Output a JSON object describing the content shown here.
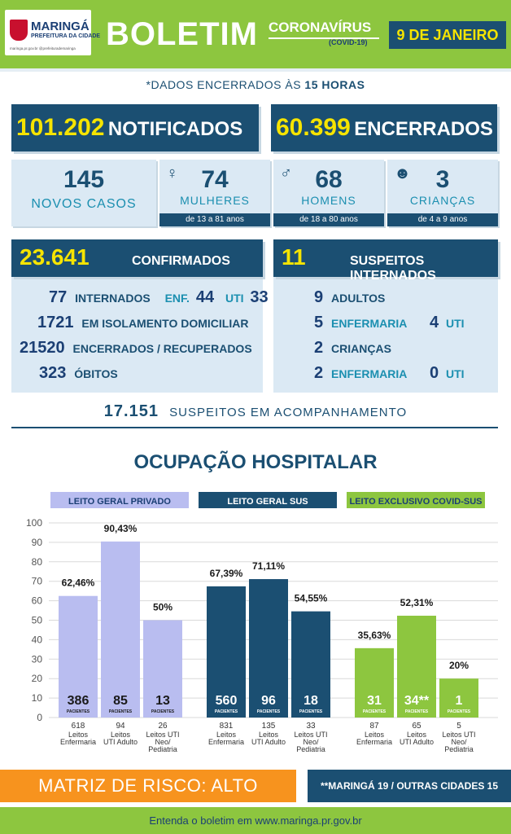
{
  "header": {
    "logo_name": "MARINGÁ",
    "logo_sub": "PREFEITURA DA CIDADE",
    "logo_web": "maringa.pr.gov.br  @prefeiturademaringa",
    "title": "BOLETIM",
    "covid": "CORONAVÍRUS",
    "covid_sub": "(COVID-19)",
    "date": "9 DE JANEIRO"
  },
  "note": {
    "prefix": "*DADOS ENCERRADOS ÀS ",
    "hour": "15 HORAS"
  },
  "notificados": {
    "num": "101.202",
    "label": "NOTIFICADOS"
  },
  "encerrados": {
    "num": "60.399",
    "label": "ENCERRADOS"
  },
  "novos": {
    "num": "145",
    "label": "NOVOS CASOS"
  },
  "mulheres": {
    "num": "74",
    "label": "MULHERES",
    "range": "de 13 a 81 anos"
  },
  "homens": {
    "num": "68",
    "label": "HOMENS",
    "range": "de 18 a 80 anos"
  },
  "criancas": {
    "num": "3",
    "label": "CRIANÇAS",
    "range": "de 4 a 9 anos"
  },
  "confirmados": {
    "num": "23.641",
    "label": "CONFIRMADOS",
    "internados": {
      "num": "77",
      "label": "INTERNADOS",
      "enf_label": "ENF.",
      "enf": "44",
      "uti_label": "UTI",
      "uti": "33"
    },
    "isolamento": {
      "num": "1721",
      "label": "EM ISOLAMENTO DOMICILIAR"
    },
    "recuperados": {
      "num": "21520",
      "label": "ENCERRADOS / RECUPERADOS"
    },
    "obitos": {
      "num": "323",
      "label": "ÓBITOS"
    }
  },
  "suspeitos": {
    "num": "11",
    "label": "SUSPEITOS INTERNADOS",
    "adultos": {
      "num": "9",
      "label": "ADULTOS"
    },
    "adult_enf": {
      "num": "5",
      "label": "ENFERMARIA",
      "uti": "4",
      "uti_label": "UTI"
    },
    "criancas": {
      "num": "2",
      "label": "CRIANÇAS"
    },
    "cri_enf": {
      "num": "2",
      "label": "ENFERMARIA",
      "uti": "0",
      "uti_label": "UTI"
    }
  },
  "acompanhamento": {
    "num": "17.151",
    "label": "SUSPEITOS EM ACOMPANHAMENTO"
  },
  "ocupacao_title": "OCUPAÇÃO HOSPITALAR",
  "chart_data": {
    "type": "bar",
    "ylim": [
      0,
      100
    ],
    "yticks": [
      0,
      10,
      20,
      30,
      40,
      50,
      60,
      70,
      80,
      90,
      100
    ],
    "patients_label": "PACIENTES",
    "groups": [
      {
        "title": "LEITO GERAL PRIVADO",
        "header_color": "#b9bdf0",
        "bar_color": "#b9bdf0",
        "bars": [
          {
            "value": 62.46,
            "label": "62,46%",
            "patients": "386",
            "beds": "618",
            "cat": [
              "Leitos",
              "Enfermaria"
            ]
          },
          {
            "value": 90.43,
            "label": "90,43%",
            "patients": "85",
            "beds": "94",
            "cat": [
              "Leitos",
              "UTI Adulto"
            ]
          },
          {
            "value": 50,
            "label": "50%",
            "patients": "13",
            "beds": "26",
            "cat": [
              "Leitos UTI",
              "Neo/",
              "Pediatria"
            ]
          }
        ]
      },
      {
        "title": "LEITO GERAL SUS",
        "header_color": "#1b4f72",
        "bar_color": "#1b4f72",
        "bars": [
          {
            "value": 67.39,
            "label": "67,39%",
            "patients": "560",
            "beds": "831",
            "cat": [
              "Leitos",
              "Enfermaria"
            ]
          },
          {
            "value": 71.11,
            "label": "71,11%",
            "patients": "96",
            "beds": "135",
            "cat": [
              "Leitos",
              "UTI Adulto"
            ]
          },
          {
            "value": 54.55,
            "label": "54,55%",
            "patients": "18",
            "beds": "33",
            "cat": [
              "Leitos UTI",
              "Neo/",
              "Pediatria"
            ]
          }
        ]
      },
      {
        "title": "LEITO EXCLUSIVO COVID-SUS",
        "header_color": "#8dc63f",
        "bar_color": "#8dc63f",
        "bars": [
          {
            "value": 35.63,
            "label": "35,63%",
            "patients": "31",
            "beds": "87",
            "cat": [
              "Leitos",
              "Enfermaria"
            ]
          },
          {
            "value": 52.31,
            "label": "52,31%",
            "patients": "34**",
            "beds": "65",
            "cat": [
              "Leitos",
              "UTI Adulto"
            ]
          },
          {
            "value": 20,
            "label": "20%",
            "patients": "1",
            "beds": "5",
            "cat": [
              "Leitos UTI",
              "Neo/",
              "Pediatria"
            ]
          }
        ]
      }
    ]
  },
  "risk": {
    "label": "MATRIZ DE RISCO: ALTO",
    "note": "**MARINGÁ 19 / OUTRAS CIDADES 15"
  },
  "footer": {
    "text": "Entenda o boletim em www.maringa.pr.gov.br"
  }
}
